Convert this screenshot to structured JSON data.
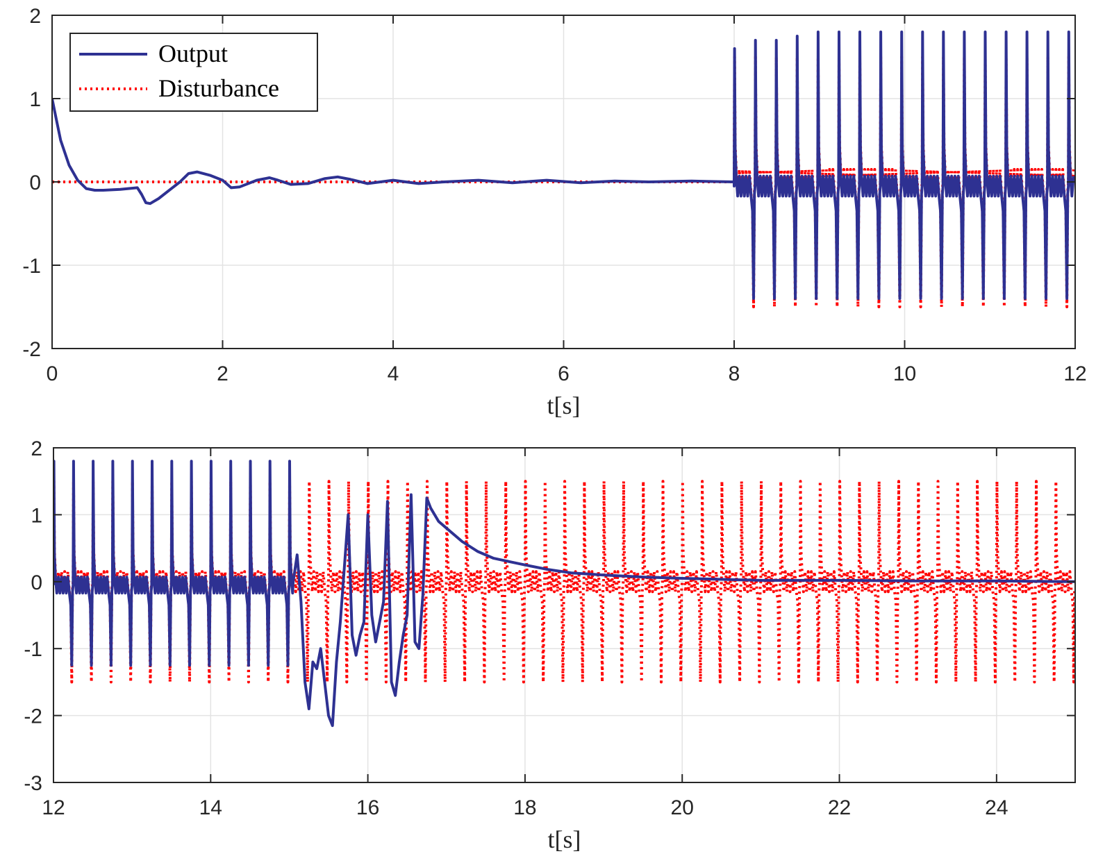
{
  "colors": {
    "output": "#2e3192",
    "disturbance": "#ff0000"
  },
  "legend": {
    "items": [
      "Output",
      "Disturbance"
    ],
    "location": "top-left"
  },
  "chart_data": [
    {
      "type": "line",
      "xlabel": "t[s]",
      "ylabel": "",
      "xlim": [
        0,
        12
      ],
      "ylim": [
        -2,
        2
      ],
      "xticks": [
        0,
        2,
        4,
        6,
        8,
        10,
        12
      ],
      "yticks": [
        2,
        1,
        0,
        -1,
        -2
      ],
      "grid": true,
      "series": [
        {
          "name": "Output",
          "style": "solid",
          "segments": [
            {
              "kind": "points",
              "x": [
                0,
                0.05,
                0.1,
                0.2,
                0.3,
                0.4,
                0.5,
                0.6,
                0.8,
                1.0,
                1.05,
                1.1,
                1.15,
                1.25,
                1.4,
                1.5,
                1.6,
                1.7,
                1.85,
                2.0,
                2.1,
                2.2,
                2.4,
                2.55,
                2.65,
                2.8,
                3.0,
                3.2,
                3.35,
                3.5,
                3.7,
                4.0,
                4.3,
                4.6,
                5.0,
                5.4,
                5.8,
                6.2,
                6.6,
                7.0,
                7.5,
                8.0
              ],
              "y": [
                1.0,
                0.75,
                0.5,
                0.2,
                0.02,
                -0.08,
                -0.1,
                -0.1,
                -0.09,
                -0.07,
                -0.15,
                -0.25,
                -0.26,
                -0.2,
                -0.08,
                0.0,
                0.1,
                0.12,
                0.08,
                0.02,
                -0.07,
                -0.06,
                0.02,
                0.05,
                0.02,
                -0.03,
                -0.02,
                0.04,
                0.06,
                0.03,
                -0.02,
                0.02,
                -0.02,
                0.0,
                0.02,
                -0.01,
                0.02,
                -0.01,
                0.01,
                0.0,
                0.01,
                0.0
              ]
            },
            {
              "kind": "periodic",
              "start": 8.0,
              "end": 12.0,
              "period": 0.245,
              "peak": [
                1.6,
                1.7,
                1.7,
                1.75,
                1.8,
                1.8,
                1.8,
                1.8,
                1.8,
                1.8,
                1.8,
                1.8,
                1.8,
                1.8,
                1.8,
                1.8
              ],
              "trough": -1.4,
              "ripple": 0.12,
              "offset": -0.05
            }
          ]
        },
        {
          "name": "Disturbance",
          "style": "dotted",
          "segments": [
            {
              "kind": "points",
              "x": [
                0,
                8.0
              ],
              "y": [
                0,
                0
              ]
            },
            {
              "kind": "periodic",
              "start": 8.0,
              "end": 12.0,
              "period": 0.245,
              "peak": [
                1.5
              ],
              "trough": -1.5,
              "ripple": 0.15,
              "offset": 0.0
            }
          ]
        }
      ]
    },
    {
      "type": "line",
      "xlabel": "t[s]",
      "ylabel": "",
      "xlim": [
        12,
        25
      ],
      "ylim": [
        -3,
        2
      ],
      "xticks": [
        12,
        14,
        16,
        18,
        20,
        22,
        24
      ],
      "yticks": [
        2,
        1,
        0,
        -1,
        -2,
        -3
      ],
      "grid": true,
      "series": [
        {
          "name": "Output",
          "style": "solid",
          "segments": [
            {
              "kind": "periodic",
              "start": 12.0,
              "end": 15.05,
              "period": 0.25,
              "peak": [
                1.8
              ],
              "trough": -1.25,
              "ripple": 0.12,
              "offset": -0.05
            },
            {
              "kind": "points",
              "x": [
                15.05,
                15.1,
                15.15,
                15.2,
                15.25,
                15.3,
                15.35,
                15.4,
                15.45,
                15.5,
                15.55,
                15.6,
                15.65,
                15.7,
                15.75,
                15.8,
                15.85,
                15.9,
                15.95,
                16.0,
                16.05,
                16.1,
                16.15,
                16.2,
                16.25,
                16.3,
                16.35,
                16.4,
                16.45,
                16.5,
                16.55,
                16.6,
                16.65,
                16.7,
                16.75,
                16.8,
                16.9,
                17.0,
                17.2,
                17.4,
                17.6,
                17.8,
                18.0,
                18.3,
                18.6,
                19.0,
                19.5,
                20.0,
                21.0,
                22.0,
                23.0,
                24.0,
                25.0
              ],
              "y": [
                0.0,
                0.4,
                -0.3,
                -1.5,
                -1.9,
                -1.2,
                -1.3,
                -1.0,
                -1.5,
                -2.0,
                -2.15,
                -1.2,
                -0.6,
                0.2,
                1.0,
                -0.8,
                -1.1,
                -0.8,
                -0.6,
                1.0,
                -0.5,
                -0.9,
                -0.6,
                -0.3,
                1.2,
                -1.5,
                -1.7,
                -1.2,
                -0.8,
                -0.5,
                1.3,
                -0.9,
                -1.0,
                -0.2,
                1.25,
                1.1,
                0.9,
                0.8,
                0.6,
                0.45,
                0.35,
                0.3,
                0.25,
                0.18,
                0.13,
                0.1,
                0.07,
                0.05,
                0.02,
                0.02,
                0.01,
                0.01,
                0.0
              ]
            }
          ]
        },
        {
          "name": "Disturbance",
          "style": "dotted",
          "segments": [
            {
              "kind": "periodic",
              "start": 12.0,
              "end": 25.0,
              "period": 0.25,
              "peak": [
                1.5
              ],
              "trough": -1.5,
              "ripple": 0.15,
              "offset": 0.0
            }
          ]
        }
      ]
    }
  ]
}
